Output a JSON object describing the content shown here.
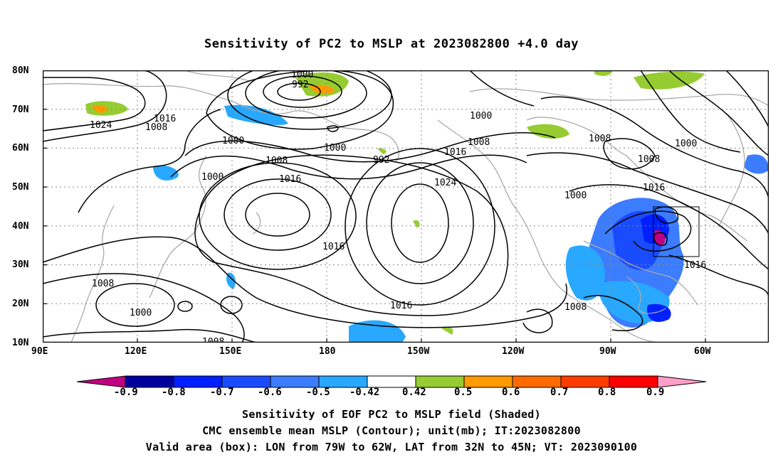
{
  "title": "Sensitivity of PC2 to MSLP at 2023082800 +4.0 day",
  "map": {
    "lat_labels": [
      "80N",
      "70N",
      "60N",
      "50N",
      "40N",
      "30N",
      "20N",
      "10N"
    ],
    "lon_labels": [
      "90E",
      "120E",
      "150E",
      "180",
      "150W",
      "120W",
      "90W",
      "60W"
    ],
    "contour_labels": [
      "1000",
      "992",
      "1024",
      "1016",
      "1008",
      "1000",
      "1000",
      "1000",
      "1008",
      "992",
      "1016",
      "1008",
      "1016",
      "1024",
      "1000",
      "1008",
      "1008",
      "1000",
      "1016",
      "1016",
      "1016",
      "1008",
      "1000",
      "1008",
      "1016",
      "1008"
    ],
    "box": {
      "lon_from": "79W",
      "lon_to": "62W",
      "lat_from": "32N",
      "lat_to": "45N"
    }
  },
  "colorbar": {
    "labels": [
      "-0.9",
      "-0.8",
      "-0.7",
      "-0.6",
      "-0.5",
      "-0.42",
      "0.42",
      "0.5",
      "0.6",
      "0.7",
      "0.8",
      "0.9"
    ],
    "colors": [
      "#00009e",
      "#0020ff",
      "#1a4cff",
      "#3c7cff",
      "#28a8ff",
      "#ffffff",
      "#96cc32",
      "#ff9a00",
      "#ff6a00",
      "#ff3c00",
      "#ff0000"
    ],
    "low_end_color": "#c00080",
    "high_end_color": "#ff9ec8"
  },
  "captions": [
    "Sensitivity of EOF PC2 to MSLP field (Shaded)",
    "CMC ensemble mean MSLP (Contour); unit(mb); IT:2023082800",
    "Valid area (box): LON from 79W to 62W, LAT from 32N to 45N; VT: 2023090100"
  ]
}
